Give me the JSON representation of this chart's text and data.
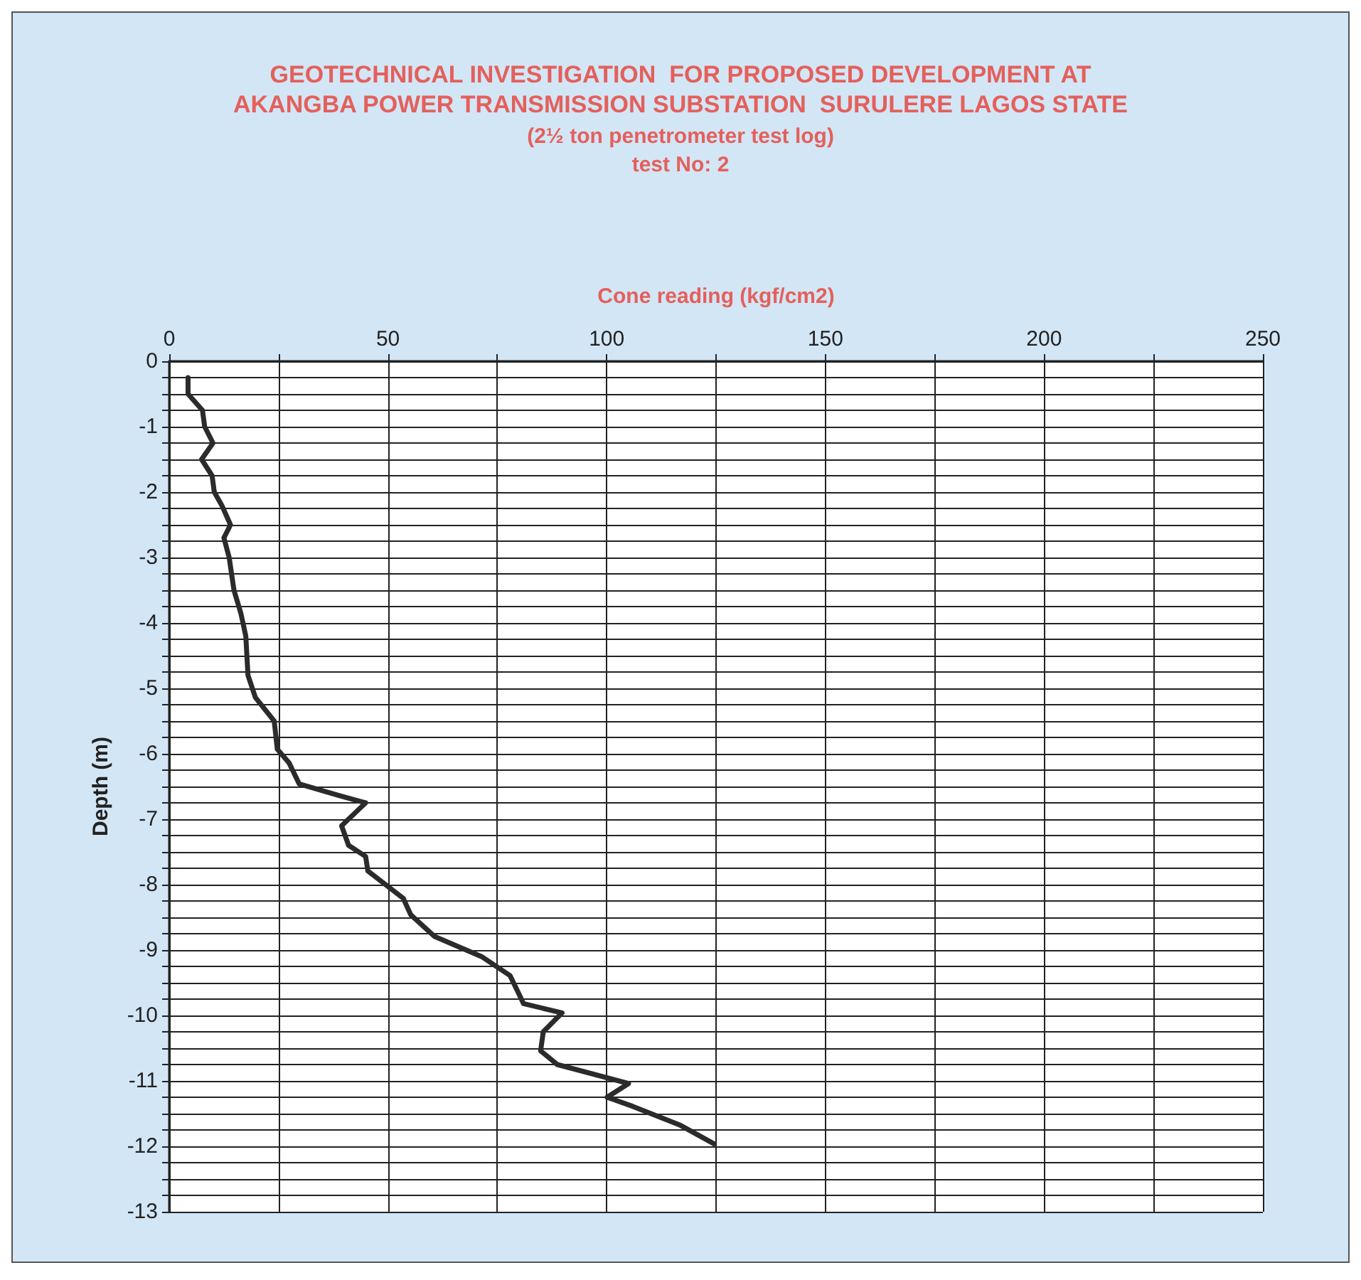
{
  "chart_data": {
    "type": "line",
    "title": "GEOTECHNICAL INVESTIGATION  FOR PROPOSED DEVELOPMENT AT\nAKANGBA POWER TRANSMISSION SUBSTATION  SURULERE LAGOS STATE",
    "subtitle": "(2½ ton penetrometer test log)\ntest No: 2",
    "xlabel": "Cone reading (kgf/cm2)",
    "ylabel": "Depth (m)",
    "series": [
      {
        "color": "#2b2b2b",
        "x": [
          4.3,
          4.3,
          7.6,
          8.1,
          10,
          7.4,
          9.8,
          10.3,
          12,
          14,
          12.5,
          13.7,
          14.8,
          16.4,
          17.5,
          18,
          19.7,
          24,
          24.7,
          27.4,
          29.7,
          38.9,
          44.9,
          39.4,
          41,
          44.9,
          45.4,
          53.5,
          55.2,
          60.6,
          71.4,
          77.9,
          80,
          81,
          89.8,
          85.5,
          84.9,
          88.7,
          105,
          100.1,
          106,
          116.9,
          124.5
        ],
        "values": [
          -0.25,
          -0.5,
          -0.75,
          -1.0,
          -1.25,
          -1.5,
          -1.75,
          -2.0,
          -2.2,
          -2.5,
          -2.7,
          -3.0,
          -3.5,
          -3.86,
          -4.2,
          -4.8,
          -5.14,
          -5.5,
          -5.93,
          -6.14,
          -6.46,
          -6.64,
          -6.75,
          -7.1,
          -7.4,
          -7.57,
          -7.79,
          -8.21,
          -8.46,
          -8.79,
          -9.1,
          -9.39,
          -9.68,
          -9.82,
          -9.96,
          -10.25,
          -10.54,
          -10.75,
          -11.04,
          -11.25,
          -11.39,
          -11.68,
          -11.96
        ]
      }
    ],
    "xlim": [
      0,
      250
    ],
    "xticks": [
      0,
      {
        "value": 25,
        "label": null
      },
      50,
      {
        "value": 75,
        "label": null
      },
      100,
      {
        "value": 125,
        "label": null
      },
      150,
      {
        "value": 175,
        "label": null
      },
      200,
      {
        "value": 225,
        "label": null
      },
      250
    ],
    "ylim": [
      -13,
      0
    ],
    "yticks": [
      -13,
      {
        "value": -12.75,
        "label": null
      },
      {
        "value": -12.5,
        "label": null
      },
      {
        "value": -12.25,
        "label": null
      },
      -12,
      {
        "value": -11.75,
        "label": null
      },
      {
        "value": -11.5,
        "label": null
      },
      {
        "value": -11.25,
        "label": null
      },
      -11,
      {
        "value": -10.75,
        "label": null
      },
      {
        "value": -10.5,
        "label": null
      },
      {
        "value": -10.25,
        "label": null
      },
      -10,
      {
        "value": -9.75,
        "label": null
      },
      {
        "value": -9.5,
        "label": null
      },
      {
        "value": -9.25,
        "label": null
      },
      -9,
      {
        "value": -8.75,
        "label": null
      },
      {
        "value": -8.5,
        "label": null
      },
      {
        "value": -8.25,
        "label": null
      },
      -8,
      {
        "value": -7.75,
        "label": null
      },
      {
        "value": -7.5,
        "label": null
      },
      {
        "value": -7.25,
        "label": null
      },
      -7,
      {
        "value": -6.75,
        "label": null
      },
      {
        "value": -6.5,
        "label": null
      },
      {
        "value": -6.25,
        "label": null
      },
      -6,
      {
        "value": -5.75,
        "label": null
      },
      {
        "value": -5.5,
        "label": null
      },
      {
        "value": -5.25,
        "label": null
      },
      -5,
      {
        "value": -4.75,
        "label": null
      },
      {
        "value": -4.5,
        "label": null
      },
      {
        "value": -4.25,
        "label": null
      },
      -4,
      {
        "value": -3.75,
        "label": null
      },
      {
        "value": -3.5,
        "label": null
      },
      {
        "value": -3.25,
        "label": null
      },
      -3,
      {
        "value": -2.75,
        "label": null
      },
      {
        "value": -2.5,
        "label": null
      },
      {
        "value": -2.25,
        "label": null
      },
      -2,
      {
        "value": -1.75,
        "label": null
      },
      {
        "value": -1.5,
        "label": null
      },
      {
        "value": -1.25,
        "label": null
      },
      -1,
      {
        "value": -0.75,
        "label": null
      },
      {
        "value": -0.5,
        "label": null
      },
      {
        "value": -0.25,
        "label": null
      },
      0
    ],
    "grid": true,
    "marker": "none",
    "line_style": "solid"
  }
}
